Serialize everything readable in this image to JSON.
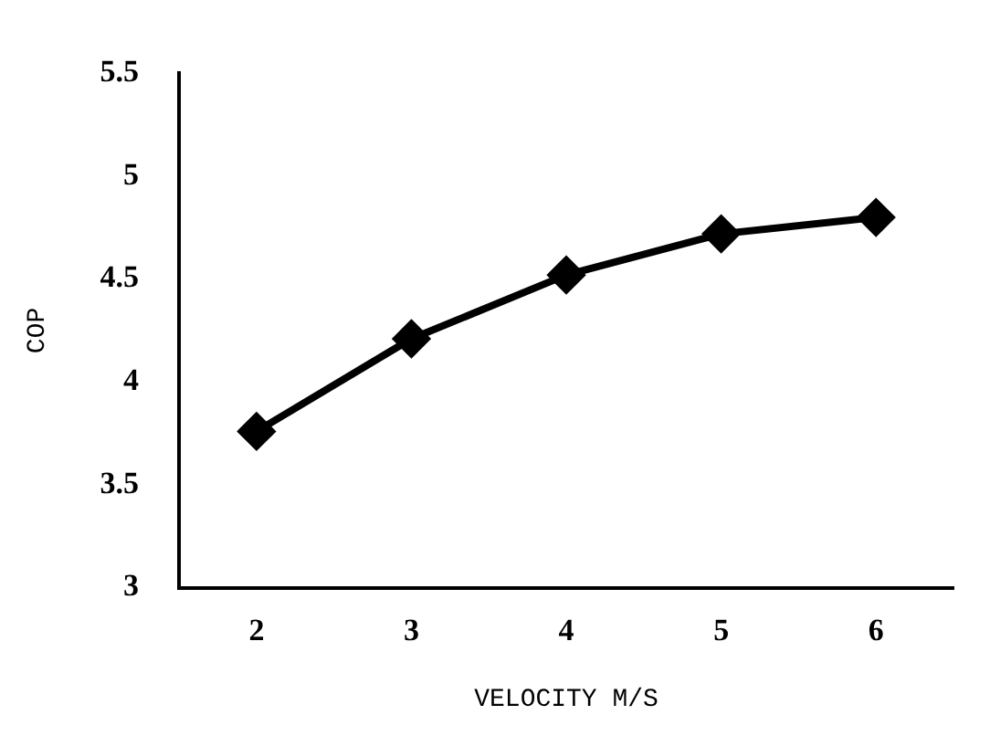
{
  "chart_data": {
    "type": "line",
    "xlabel": "VELOCITY M/S",
    "ylabel": "COP",
    "categories": [
      "2",
      "3",
      "4",
      "5",
      "6"
    ],
    "series": [
      {
        "color": "#000000",
        "values": [
          3.76,
          4.21,
          4.52,
          4.72,
          4.8
        ]
      }
    ],
    "ylim": [
      3,
      5.5
    ],
    "yticks": [
      3,
      3.5,
      4,
      4.5,
      5,
      5.5
    ],
    "grid": false,
    "legend": false,
    "marker": "diamond",
    "line_style": "solid"
  }
}
